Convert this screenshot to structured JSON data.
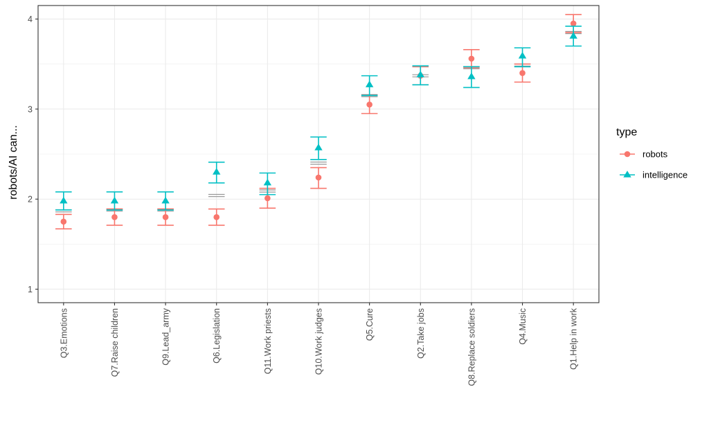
{
  "chart_data": {
    "type": "scatter",
    "title": "",
    "xlabel": "",
    "ylabel": "robots/AI can...",
    "ylim": [
      0.85,
      4.15
    ],
    "yticks": [
      1,
      2,
      3,
      4
    ],
    "categories": [
      "Q3.Emotions",
      "Q7.Raise children",
      "Q9.Lead_army",
      "Q6.Legislation",
      "Q11.Work priests",
      "Q10.Work judges",
      "Q5.Cure",
      "Q2.Take jobs",
      "Q8.Replace soldiers",
      "Q4.Music",
      "Q1.Help in work"
    ],
    "grid": true,
    "legend": {
      "title": "type",
      "placement": "right"
    },
    "mean_line_color": "#999999",
    "means": [
      1.87,
      1.88,
      1.88,
      2.04,
      2.09,
      2.4,
      3.15,
      3.37,
      3.46,
      3.49,
      3.85
    ],
    "series": [
      {
        "name": "robots",
        "color": "#f8766d",
        "marker": "circle",
        "values": [
          1.75,
          1.8,
          1.8,
          1.8,
          2.01,
          2.24,
          3.05,
          3.37,
          3.56,
          3.4,
          3.95
        ],
        "error_low": [
          1.67,
          1.71,
          1.71,
          1.71,
          1.9,
          2.12,
          2.95,
          3.27,
          3.46,
          3.3,
          3.85
        ],
        "error_high": [
          1.83,
          1.89,
          1.89,
          1.89,
          2.12,
          2.35,
          3.15,
          3.47,
          3.66,
          3.5,
          4.05
        ]
      },
      {
        "name": "intelligence",
        "color": "#00bfc4",
        "marker": "triangle",
        "values": [
          1.98,
          1.98,
          1.98,
          2.3,
          2.18,
          2.57,
          3.27,
          3.38,
          3.36,
          3.59,
          3.81
        ],
        "error_low": [
          1.88,
          1.88,
          1.88,
          2.18,
          2.05,
          2.44,
          3.15,
          3.27,
          3.24,
          3.47,
          3.7
        ],
        "error_high": [
          2.08,
          2.08,
          2.08,
          2.41,
          2.29,
          2.69,
          3.37,
          3.48,
          3.47,
          3.68,
          3.92
        ]
      }
    ]
  }
}
